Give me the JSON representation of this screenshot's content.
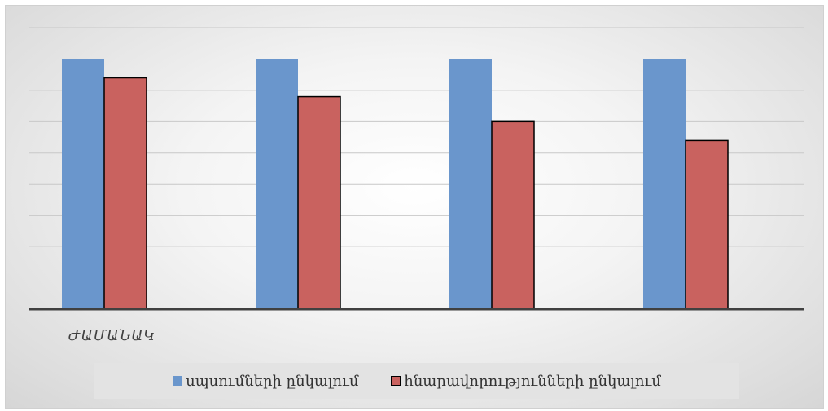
{
  "chart_data": {
    "type": "bar",
    "categories": [
      "",
      "",
      "",
      ""
    ],
    "xlabel": "ԺԱՄԱՆԱԿ",
    "ylabel": "",
    "title": "",
    "ylim": [
      0,
      8
    ],
    "grid": true,
    "legend_position": "bottom",
    "series": [
      {
        "name": "սպսումների ընկալում",
        "values": [
          8,
          8,
          8,
          8
        ],
        "color": "#6a96cc"
      },
      {
        "name": "հնարավորությունների ընկալում",
        "values": [
          7.4,
          6.8,
          6.0,
          5.4
        ],
        "color": "#c9625f"
      }
    ]
  }
}
